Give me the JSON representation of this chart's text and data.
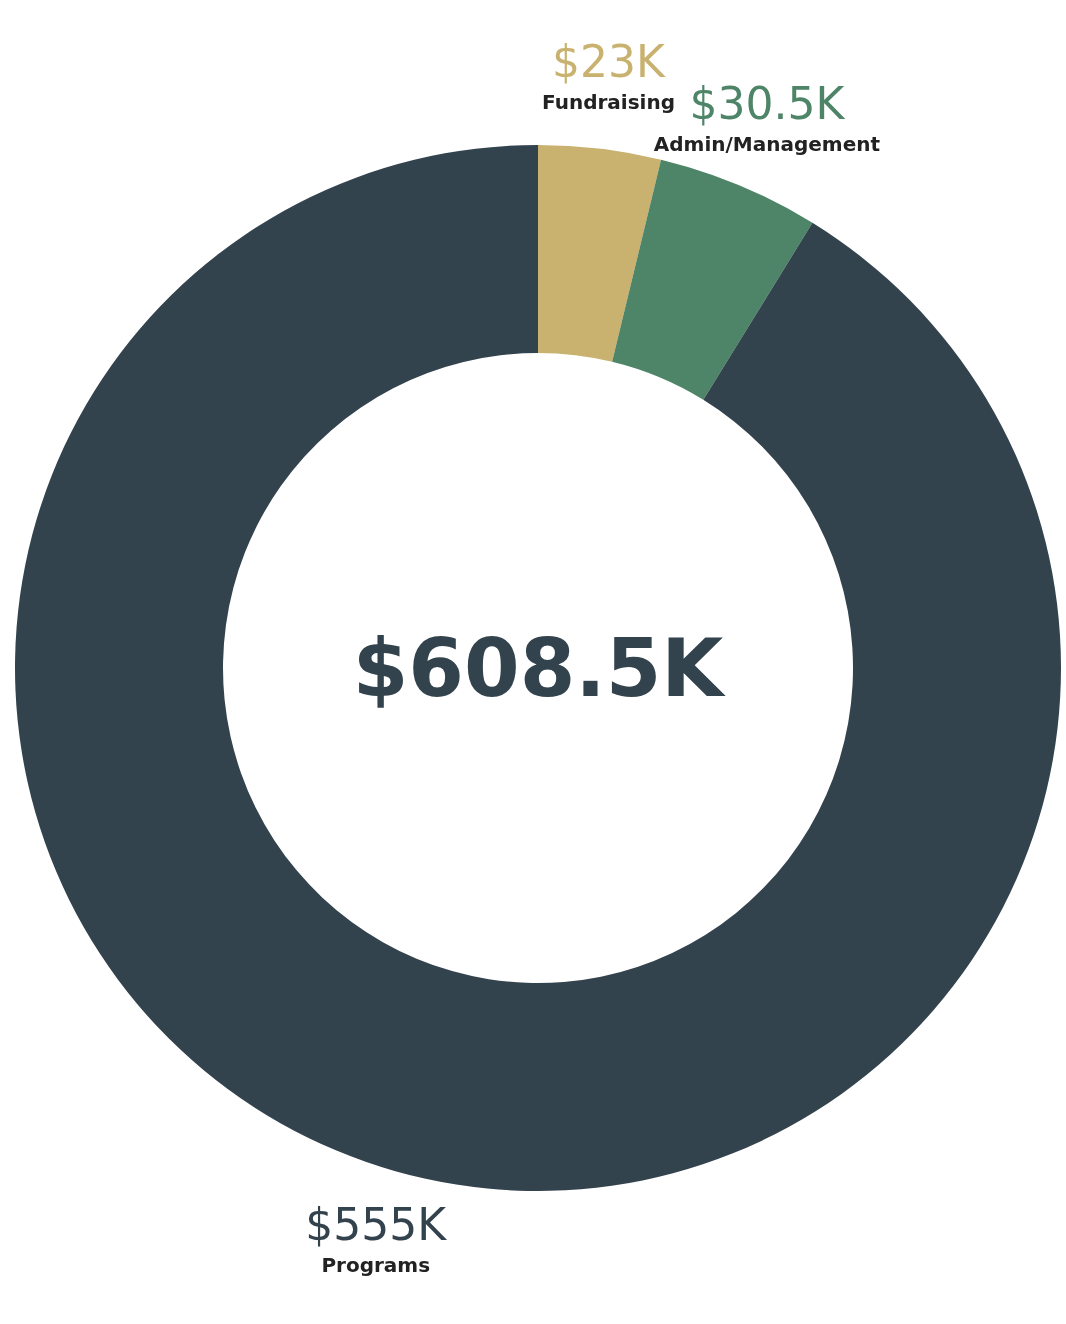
{
  "chart_data": {
    "type": "donut",
    "categories": [
      "Fundraising",
      "Admin/Management",
      "Programs"
    ],
    "values": [
      23,
      30.5,
      555
    ],
    "colors": [
      "#c9b26f",
      "#4e8467",
      "#33434d"
    ],
    "value_labels": [
      "$23K",
      "$30.5K",
      "$555K"
    ],
    "annotations": [
      "$608.5K"
    ]
  }
}
